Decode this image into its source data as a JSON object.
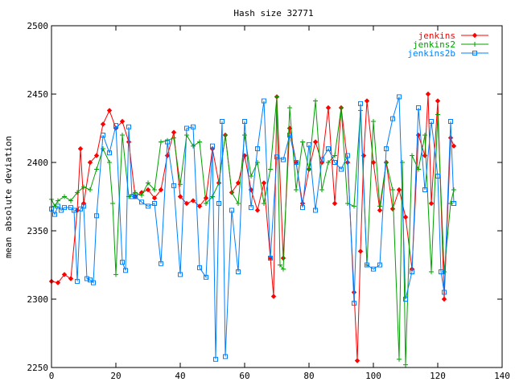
{
  "chart_data": {
    "type": "line",
    "title": "Hash size 32771",
    "xlabel": "",
    "ylabel": "mean absolute deviation",
    "xlim": [
      0,
      140
    ],
    "ylim": [
      2250,
      2500
    ],
    "x_ticks": [
      "0",
      "20",
      "40",
      "60",
      "80",
      "100",
      "120",
      "140"
    ],
    "y_ticks": [
      "2250",
      "2300",
      "2350",
      "2400",
      "2450",
      "2500"
    ],
    "legend_position": "top-right",
    "series": [
      {
        "name": "jenkins",
        "color": "#ff0000",
        "marker": "diamond",
        "x": [
          0,
          2,
          4,
          6,
          8,
          9,
          10,
          12,
          14,
          16,
          18,
          20,
          22,
          24,
          26,
          28,
          30,
          32,
          34,
          36,
          38,
          40,
          42,
          44,
          46,
          48,
          50,
          52,
          54,
          56,
          58,
          60,
          62,
          64,
          66,
          68,
          69,
          70,
          72,
          74,
          76,
          78,
          80,
          82,
          84,
          86,
          88,
          90,
          92,
          94,
          95,
          96,
          97,
          98,
          100,
          102,
          104,
          106,
          108,
          110,
          112,
          114,
          116,
          117,
          118,
          120,
          122,
          124,
          125
        ],
        "y": [
          2313,
          2312,
          2318,
          2315,
          2365,
          2410,
          2370,
          2400,
          2405,
          2428,
          2438,
          2425,
          2430,
          2415,
          2375,
          2378,
          2380,
          2374,
          2380,
          2405,
          2422,
          2375,
          2370,
          2372,
          2368,
          2374,
          2410,
          2385,
          2420,
          2378,
          2385,
          2405,
          2380,
          2365,
          2385,
          2330,
          2302,
          2448,
          2330,
          2425,
          2400,
          2370,
          2395,
          2415,
          2400,
          2440,
          2370,
          2440,
          2400,
          2305,
          2255,
          2335,
          2405,
          2445,
          2400,
          2365,
          2400,
          2366,
          2380,
          2360,
          2322,
          2420,
          2405,
          2450,
          2370,
          2445,
          2300,
          2418,
          2412
        ]
      },
      {
        "name": "jenkins2",
        "color": "#00a000",
        "marker": "plus",
        "x": [
          0,
          1,
          2,
          4,
          6,
          8,
          10,
          12,
          14,
          16,
          18,
          19,
          20,
          22,
          24,
          26,
          28,
          30,
          32,
          34,
          36,
          38,
          40,
          42,
          44,
          46,
          48,
          50,
          52,
          54,
          56,
          58,
          60,
          62,
          64,
          66,
          68,
          70,
          71,
          72,
          74,
          76,
          78,
          80,
          82,
          84,
          86,
          88,
          90,
          92,
          94,
          96,
          98,
          100,
          102,
          104,
          106,
          108,
          109,
          110,
          112,
          114,
          116,
          118,
          120,
          122,
          124,
          125
        ],
        "y": [
          2373,
          2368,
          2372,
          2375,
          2372,
          2378,
          2382,
          2380,
          2395,
          2410,
          2400,
          2370,
          2318,
          2420,
          2375,
          2378,
          2376,
          2385,
          2380,
          2415,
          2416,
          2418,
          2384,
          2420,
          2412,
          2415,
          2370,
          2375,
          2385,
          2420,
          2378,
          2370,
          2420,
          2390,
          2400,
          2370,
          2395,
          2448,
          2325,
          2322,
          2440,
          2380,
          2415,
          2395,
          2445,
          2380,
          2400,
          2405,
          2440,
          2370,
          2368,
          2438,
          2325,
          2430,
          2368,
          2400,
          2380,
          2256,
          2400,
          2252,
          2405,
          2395,
          2420,
          2320,
          2435,
          2320,
          2370,
          2380
        ]
      },
      {
        "name": "jenkins2b",
        "color": "#0080ff",
        "marker": "square",
        "x": [
          0,
          1,
          2,
          3,
          4,
          6,
          7,
          8,
          9,
          10,
          11,
          12,
          13,
          14,
          16,
          18,
          20,
          22,
          23,
          24,
          25,
          26,
          28,
          30,
          32,
          34,
          36,
          38,
          40,
          42,
          44,
          46,
          48,
          50,
          51,
          52,
          53,
          54,
          56,
          58,
          60,
          62,
          64,
          66,
          68,
          70,
          72,
          74,
          76,
          78,
          80,
          82,
          84,
          86,
          88,
          90,
          92,
          94,
          96,
          98,
          100,
          102,
          104,
          106,
          108,
          110,
          112,
          114,
          116,
          118,
          120,
          121,
          122,
          124,
          125
        ],
        "y": [
          2366,
          2362,
          2368,
          2365,
          2367,
          2367,
          2365,
          2313,
          2366,
          2368,
          2315,
          2314,
          2312,
          2361,
          2420,
          2407,
          2427,
          2327,
          2321,
          2426,
          2375,
          2375,
          2371,
          2368,
          2370,
          2326,
          2415,
          2383,
          2318,
          2425,
          2426,
          2323,
          2316,
          2412,
          2256,
          2370,
          2430,
          2258,
          2365,
          2320,
          2430,
          2367,
          2410,
          2445,
          2330,
          2404,
          2402,
          2420,
          2400,
          2367,
          2413,
          2365,
          2402,
          2410,
          2400,
          2395,
          2405,
          2297,
          2443,
          2325,
          2322,
          2325,
          2410,
          2432,
          2448,
          2300,
          2320,
          2440,
          2380,
          2430,
          2390,
          2320,
          2305,
          2430,
          2370
        ]
      }
    ]
  }
}
